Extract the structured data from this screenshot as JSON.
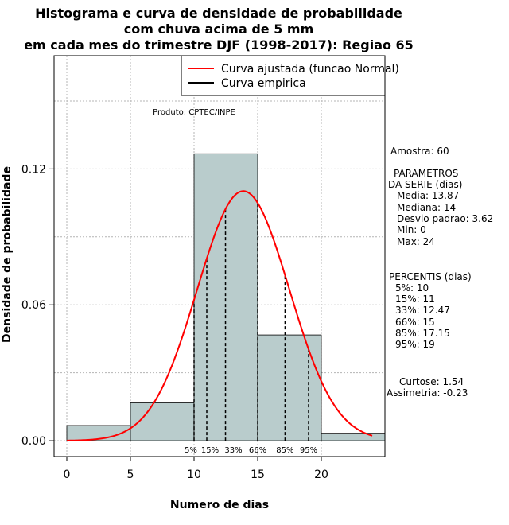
{
  "chart_data": {
    "type": "histogram",
    "title_lines": [
      "Histograma e curva de densidade de probabilidade",
      "com chuva acima de 5 mm",
      "em cada mes do trimestre DJF (1998-2017): Regiao 65"
    ],
    "xlabel": "Numero de dias",
    "ylabel": "Densidade de probabilidade",
    "xlim": [
      -1,
      25
    ],
    "ylim": [
      -0.007,
      0.17
    ],
    "x_ticks": [
      0,
      5,
      10,
      15,
      20
    ],
    "y_ticks": [
      0.0,
      0.06,
      0.12
    ],
    "y_tick_labels": [
      "0.00",
      "0.06",
      "0.12"
    ],
    "bins": [
      {
        "from": 0,
        "to": 5,
        "density": 0.0067
      },
      {
        "from": 5,
        "to": 10,
        "density": 0.0167
      },
      {
        "from": 10,
        "to": 15,
        "density": 0.1267
      },
      {
        "from": 15,
        "to": 20,
        "density": 0.0467
      },
      {
        "from": 20,
        "to": 25,
        "density": 0.0033
      }
    ],
    "normal_fit": {
      "mean": 13.87,
      "sd": 3.62,
      "from": 0,
      "to": 24
    },
    "percentile_lines": [
      {
        "label": "5%",
        "x": 10
      },
      {
        "label": "15%",
        "x": 11
      },
      {
        "label": "33%",
        "x": 12.47
      },
      {
        "label": "66%",
        "x": 15
      },
      {
        "label": "85%",
        "x": 17.15
      },
      {
        "label": "95%",
        "x": 19
      }
    ],
    "legend": [
      {
        "label": "Curva ajustada (funcao Normal)",
        "color": "#ff0000"
      },
      {
        "label": "Curva empirica",
        "color": "#000000"
      }
    ],
    "legend_position": "top-right",
    "credit": "Produto: CPTEC/INPE",
    "bar_color": "#b9cccc",
    "curve_color": "#ff0000"
  },
  "stats": {
    "sample": "Amostra: 60",
    "params_title": [
      "PARAMETROS",
      "DA SERIE (dias)"
    ],
    "params": [
      "Media: 13.87",
      "Mediana: 14",
      "Desvio padrao: 3.62",
      "Min: 0",
      "Max: 24"
    ],
    "percentiles_title": "PERCENTIS (dias)",
    "percentiles": [
      "5%: 10",
      "15%: 11",
      "33%: 12.47",
      "66%: 15",
      "85%: 17.15",
      "95%: 19"
    ],
    "kurtosis": "Curtose: 1.54",
    "skewness": "Assimetria: -0.23"
  }
}
